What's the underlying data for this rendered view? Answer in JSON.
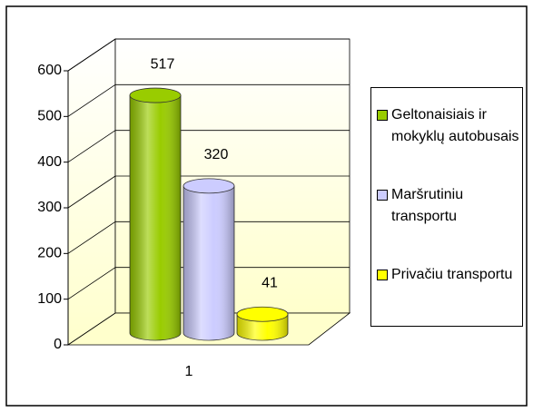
{
  "chart_data": {
    "type": "cylinder",
    "categories": [
      "1"
    ],
    "series": [
      {
        "name": "Geltonaisiais ir mokyklų autobusais",
        "color": "#99cc00",
        "values": [
          517
        ]
      },
      {
        "name": "Maršrutiniu transportu",
        "color": "#ccccff",
        "values": [
          320
        ]
      },
      {
        "name": "Privačiu transportu",
        "color": "#ffff00",
        "values": [
          41
        ]
      }
    ],
    "ylim": [
      0,
      600
    ],
    "yticks": [
      0,
      100,
      200,
      300,
      400,
      500,
      600
    ],
    "grid": true,
    "legend": "right"
  }
}
